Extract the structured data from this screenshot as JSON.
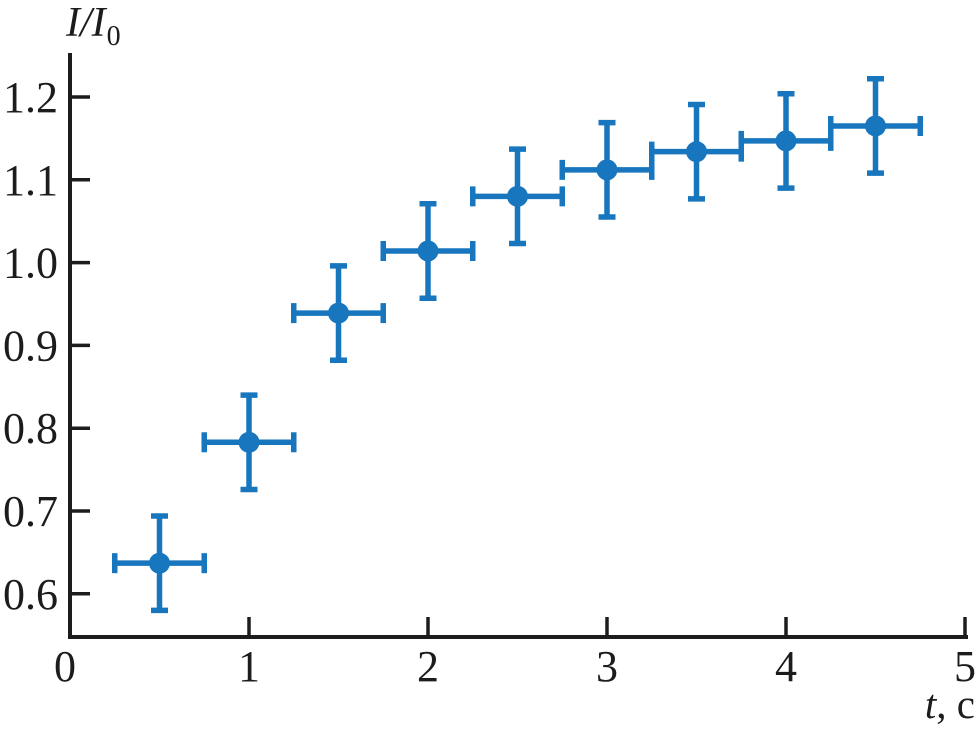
{
  "chart_data": {
    "type": "scatter",
    "title": "",
    "xlabel": "t, с",
    "ylabel": "I/I0",
    "xlabel_parts": {
      "italic": "t",
      "rest": ", с"
    },
    "ylabel_parts": {
      "main": "I/I",
      "sub": "0"
    },
    "x": [
      0.5,
      1.0,
      1.5,
      2.0,
      2.5,
      3.0,
      3.5,
      4.0,
      4.5
    ],
    "y": [
      0.637,
      0.783,
      0.939,
      1.014,
      1.08,
      1.112,
      1.134,
      1.147,
      1.165
    ],
    "xerr": 0.25,
    "yerr": 0.057,
    "xlim": [
      0,
      5
    ],
    "ylim": [
      0.55,
      1.25
    ],
    "xticks": {
      "values": [
        0,
        1,
        2,
        3,
        4,
        5
      ],
      "labels": [
        "0",
        "1",
        "2",
        "3",
        "4",
        "5"
      ]
    },
    "yticks": {
      "values": [
        1.2,
        1.1,
        1.0,
        0.9,
        0.8,
        0.7,
        0.6
      ],
      "labels": [
        "1.2",
        "1.1",
        "1.0",
        "0.9",
        "0.8",
        "0.7",
        "0.6"
      ]
    },
    "grid": false,
    "legend": false,
    "marker": "circle",
    "colors": {
      "series": "#1776bd",
      "axis": "#1c1c1c",
      "text": "#1c1c1c",
      "background": "#ffffff"
    }
  }
}
